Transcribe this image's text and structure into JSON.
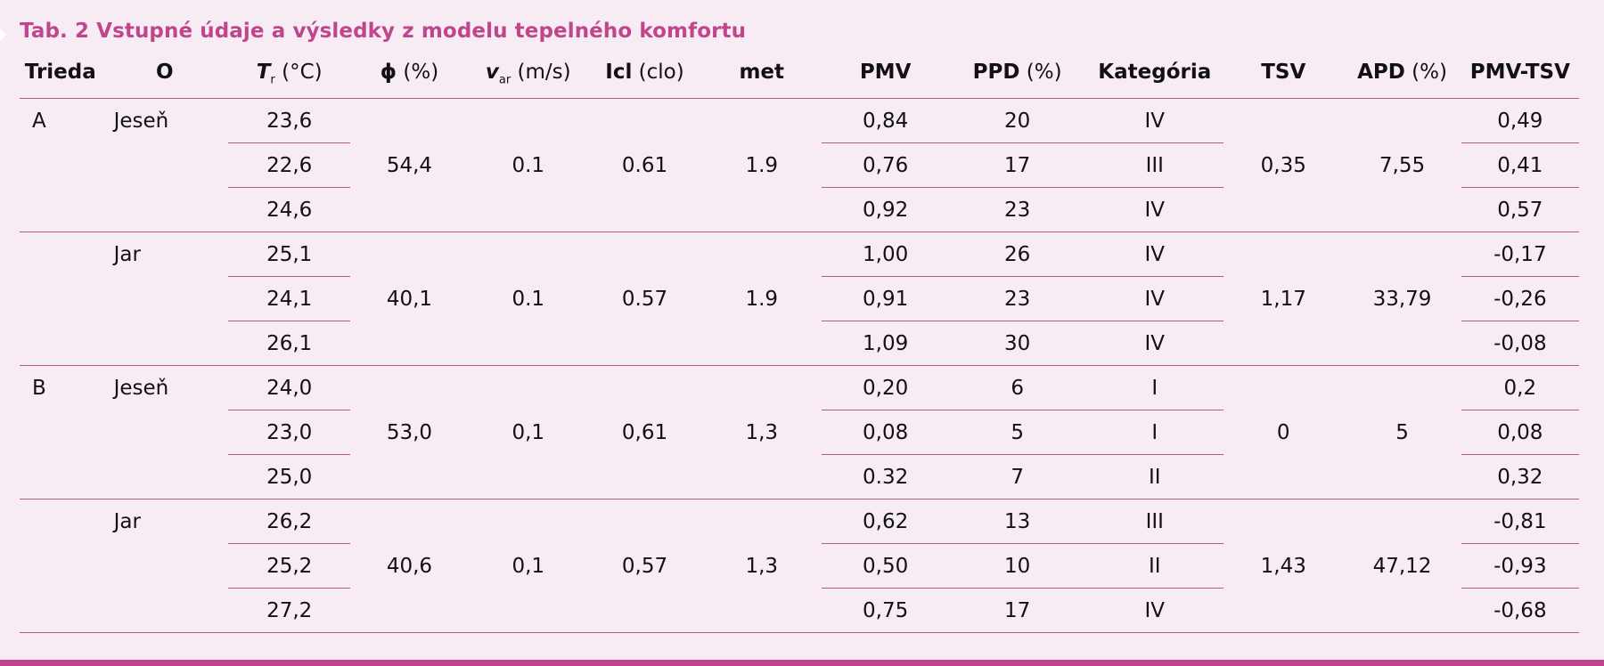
{
  "caption": "Tab. 2 Vstupné údaje a výsledky z modelu tepelného komfortu",
  "headers": {
    "trieda": "Trieda",
    "o": "O",
    "tr_symbol": "T",
    "tr_sub": "r",
    "tr_unit": " (°C)",
    "phi_symbol": "ϕ",
    "phi_unit": " (%)",
    "var_symbol": "v",
    "var_sub": "ar",
    "var_unit": " (m/s)",
    "icl_symbol": "Icl",
    "icl_unit": " (clo)",
    "met": "met",
    "pmv": "PMV",
    "ppd_symbol": "PPD",
    "ppd_unit": " (%)",
    "kategoria": "Kategória",
    "tsv": "TSV",
    "apd_symbol": "APD",
    "apd_unit": " (%)",
    "pmv_tsv": "PMV-TSV"
  },
  "groups": [
    {
      "trieda": "A",
      "obdobie": "Jeseň",
      "phi": "54,4",
      "var": "0.1",
      "icl": "0.61",
      "met": "1.9",
      "tsv": "0,35",
      "apd": "7,55",
      "rows": [
        {
          "tr": "23,6",
          "pmv": "0,84",
          "ppd": "20",
          "kat": "IV",
          "diff": "0,49"
        },
        {
          "tr": "22,6",
          "pmv": "0,76",
          "ppd": "17",
          "kat": "III",
          "diff": "0,41"
        },
        {
          "tr": "24,6",
          "pmv": "0,92",
          "ppd": "23",
          "kat": "IV",
          "diff": "0,57"
        }
      ]
    },
    {
      "trieda": "",
      "obdobie": "Jar",
      "phi": "40,1",
      "var": "0.1",
      "icl": "0.57",
      "met": "1.9",
      "tsv": "1,17",
      "apd": "33,79",
      "rows": [
        {
          "tr": "25,1",
          "pmv": "1,00",
          "ppd": "26",
          "kat": "IV",
          "diff": "-0,17"
        },
        {
          "tr": "24,1",
          "pmv": "0,91",
          "ppd": "23",
          "kat": "IV",
          "diff": "-0,26"
        },
        {
          "tr": "26,1",
          "pmv": "1,09",
          "ppd": "30",
          "kat": "IV",
          "diff": "-0,08"
        }
      ]
    },
    {
      "trieda": "B",
      "obdobie": "Jeseň",
      "phi": "53,0",
      "var": "0,1",
      "icl": "0,61",
      "met": "1,3",
      "tsv": "0",
      "apd": "5",
      "rows": [
        {
          "tr": "24,0",
          "pmv": "0,20",
          "ppd": "6",
          "kat": "I",
          "diff": "0,2"
        },
        {
          "tr": "23,0",
          "pmv": "0,08",
          "ppd": "5",
          "kat": "I",
          "diff": "0,08"
        },
        {
          "tr": "25,0",
          "pmv": "0.32",
          "ppd": "7",
          "kat": "II",
          "diff": "0,32"
        }
      ]
    },
    {
      "trieda": "",
      "obdobie": "Jar",
      "phi": "40,6",
      "var": "0,1",
      "icl": "0,57",
      "met": "1,3",
      "tsv": "1,43",
      "apd": "47,12",
      "rows": [
        {
          "tr": "26,2",
          "pmv": "0,62",
          "ppd": "13",
          "kat": "III",
          "diff": "-0,81"
        },
        {
          "tr": "25,2",
          "pmv": "0,50",
          "ppd": "10",
          "kat": "II",
          "diff": "-0,93"
        },
        {
          "tr": "27,2",
          "pmv": "0,75",
          "ppd": "17",
          "kat": "IV",
          "diff": "-0,68"
        }
      ]
    }
  ]
}
